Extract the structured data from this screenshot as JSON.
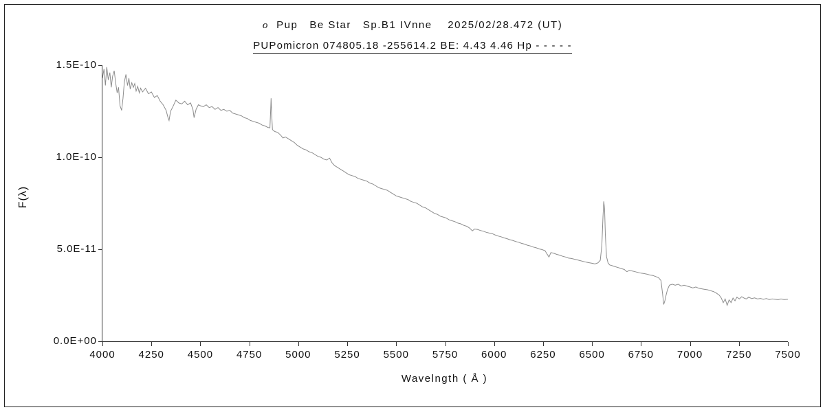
{
  "figure": {
    "title_italic": "o",
    "title_rest": "  Pup   Be Star   Sp.B1 IVnne    2025/02/28.472 (UT)",
    "subtitle": "PUPomicron 074805.18 -255614.2 BE: 4.43 4.46 Hp - - - - -"
  },
  "chart_data": {
    "type": "line",
    "title": "o Pup  Be Star  Sp.B1 IVnne  2025/02/28.472 (UT)",
    "subtitle": "PUPomicron 074805.18 -255614.2 BE: 4.43 4.46 Hp - - - - -",
    "xlabel": "Wavelngth ( Å )",
    "ylabel": "F(λ)",
    "xlim": [
      4000,
      7500
    ],
    "ylim": [
      0,
      15
    ],
    "y_value_scale": "values in units of 1e-11, axis shown 0.0E+00 to 1.5E-10",
    "grid": false,
    "legend": "none",
    "line_color": "#8c8c8c",
    "axis_color": "#333333",
    "x_ticks": [
      4000,
      4250,
      4500,
      4750,
      5000,
      5250,
      5500,
      5750,
      6000,
      6250,
      6500,
      6750,
      7000,
      7250,
      7500
    ],
    "y_ticks": [
      {
        "v": 0,
        "label": "0.0E+00"
      },
      {
        "v": 5,
        "label": "5.0E-11"
      },
      {
        "v": 10,
        "label": "1.0E-10"
      },
      {
        "v": 15,
        "label": "1.5E-10"
      }
    ],
    "series": [
      {
        "name": "spectrum",
        "points": [
          [
            4000,
            14.3
          ],
          [
            4008,
            14.8
          ],
          [
            4015,
            13.9
          ],
          [
            4022,
            14.9
          ],
          [
            4030,
            14.2
          ],
          [
            4038,
            14.6
          ],
          [
            4045,
            13.8
          ],
          [
            4052,
            14.4
          ],
          [
            4060,
            14.7
          ],
          [
            4068,
            14.0
          ],
          [
            4075,
            13.5
          ],
          [
            4082,
            13.8
          ],
          [
            4090,
            12.8
          ],
          [
            4098,
            12.55
          ],
          [
            4105,
            13.2
          ],
          [
            4112,
            14.1
          ],
          [
            4120,
            14.5
          ],
          [
            4128,
            13.9
          ],
          [
            4135,
            14.3
          ],
          [
            4142,
            13.7
          ],
          [
            4150,
            14.05
          ],
          [
            4158,
            13.8
          ],
          [
            4165,
            14.0
          ],
          [
            4172,
            13.6
          ],
          [
            4180,
            13.85
          ],
          [
            4188,
            13.5
          ],
          [
            4195,
            13.75
          ],
          [
            4205,
            13.55
          ],
          [
            4220,
            13.75
          ],
          [
            4235,
            13.45
          ],
          [
            4250,
            13.55
          ],
          [
            4265,
            13.25
          ],
          [
            4280,
            13.35
          ],
          [
            4295,
            13.05
          ],
          [
            4310,
            12.85
          ],
          [
            4325,
            12.55
          ],
          [
            4335,
            12.15
          ],
          [
            4340,
            12.0
          ],
          [
            4348,
            12.5
          ],
          [
            4360,
            12.75
          ],
          [
            4375,
            13.1
          ],
          [
            4390,
            12.95
          ],
          [
            4405,
            12.9
          ],
          [
            4420,
            13.05
          ],
          [
            4435,
            12.85
          ],
          [
            4450,
            12.95
          ],
          [
            4462,
            12.6
          ],
          [
            4468,
            12.15
          ],
          [
            4478,
            12.6
          ],
          [
            4490,
            12.85
          ],
          [
            4500,
            12.8
          ],
          [
            4515,
            12.75
          ],
          [
            4530,
            12.85
          ],
          [
            4545,
            12.7
          ],
          [
            4560,
            12.75
          ],
          [
            4575,
            12.6
          ],
          [
            4590,
            12.7
          ],
          [
            4605,
            12.55
          ],
          [
            4620,
            12.6
          ],
          [
            4635,
            12.5
          ],
          [
            4650,
            12.55
          ],
          [
            4665,
            12.4
          ],
          [
            4680,
            12.35
          ],
          [
            4695,
            12.3
          ],
          [
            4710,
            12.25
          ],
          [
            4725,
            12.15
          ],
          [
            4740,
            12.1
          ],
          [
            4755,
            12.0
          ],
          [
            4770,
            11.95
          ],
          [
            4785,
            11.9
          ],
          [
            4800,
            11.85
          ],
          [
            4815,
            11.75
          ],
          [
            4830,
            11.7
          ],
          [
            4845,
            11.62
          ],
          [
            4855,
            11.6
          ],
          [
            4859,
            12.6
          ],
          [
            4861,
            13.2
          ],
          [
            4864,
            12.4
          ],
          [
            4868,
            11.5
          ],
          [
            4880,
            11.4
          ],
          [
            4895,
            11.35
          ],
          [
            4910,
            11.2
          ],
          [
            4922,
            11.05
          ],
          [
            4935,
            11.1
          ],
          [
            4950,
            11.0
          ],
          [
            4965,
            10.9
          ],
          [
            4980,
            10.8
          ],
          [
            4995,
            10.65
          ],
          [
            5010,
            10.55
          ],
          [
            5025,
            10.45
          ],
          [
            5040,
            10.4
          ],
          [
            5055,
            10.3
          ],
          [
            5070,
            10.25
          ],
          [
            5085,
            10.15
          ],
          [
            5100,
            10.05
          ],
          [
            5115,
            10.0
          ],
          [
            5130,
            9.9
          ],
          [
            5145,
            9.85
          ],
          [
            5160,
            9.95
          ],
          [
            5172,
            9.7
          ],
          [
            5185,
            9.55
          ],
          [
            5200,
            9.45
          ],
          [
            5215,
            9.35
          ],
          [
            5230,
            9.25
          ],
          [
            5245,
            9.15
          ],
          [
            5260,
            9.05
          ],
          [
            5275,
            9.0
          ],
          [
            5290,
            8.95
          ],
          [
            5305,
            8.85
          ],
          [
            5320,
            8.8
          ],
          [
            5335,
            8.75
          ],
          [
            5350,
            8.7
          ],
          [
            5365,
            8.6
          ],
          [
            5380,
            8.55
          ],
          [
            5395,
            8.45
          ],
          [
            5410,
            8.35
          ],
          [
            5425,
            8.3
          ],
          [
            5440,
            8.25
          ],
          [
            5455,
            8.2
          ],
          [
            5470,
            8.1
          ],
          [
            5485,
            8.0
          ],
          [
            5500,
            7.9
          ],
          [
            5515,
            7.85
          ],
          [
            5530,
            7.8
          ],
          [
            5545,
            7.75
          ],
          [
            5560,
            7.7
          ],
          [
            5575,
            7.6
          ],
          [
            5590,
            7.55
          ],
          [
            5605,
            7.5
          ],
          [
            5620,
            7.4
          ],
          [
            5635,
            7.3
          ],
          [
            5650,
            7.25
          ],
          [
            5665,
            7.15
          ],
          [
            5680,
            7.05
          ],
          [
            5695,
            6.95
          ],
          [
            5710,
            6.9
          ],
          [
            5725,
            6.8
          ],
          [
            5740,
            6.75
          ],
          [
            5755,
            6.7
          ],
          [
            5770,
            6.6
          ],
          [
            5785,
            6.55
          ],
          [
            5800,
            6.5
          ],
          [
            5815,
            6.42
          ],
          [
            5830,
            6.38
          ],
          [
            5845,
            6.3
          ],
          [
            5860,
            6.25
          ],
          [
            5875,
            6.15
          ],
          [
            5889,
            6.0
          ],
          [
            5900,
            6.1
          ],
          [
            5915,
            6.08
          ],
          [
            5930,
            6.02
          ],
          [
            5945,
            5.98
          ],
          [
            5960,
            5.92
          ],
          [
            5975,
            5.88
          ],
          [
            5990,
            5.85
          ],
          [
            6005,
            5.78
          ],
          [
            6020,
            5.72
          ],
          [
            6035,
            5.68
          ],
          [
            6050,
            5.62
          ],
          [
            6065,
            5.58
          ],
          [
            6080,
            5.52
          ],
          [
            6095,
            5.48
          ],
          [
            6110,
            5.42
          ],
          [
            6125,
            5.38
          ],
          [
            6140,
            5.32
          ],
          [
            6155,
            5.28
          ],
          [
            6170,
            5.22
          ],
          [
            6185,
            5.18
          ],
          [
            6200,
            5.12
          ],
          [
            6215,
            5.08
          ],
          [
            6230,
            5.02
          ],
          [
            6245,
            4.98
          ],
          [
            6260,
            4.92
          ],
          [
            6270,
            4.75
          ],
          [
            6280,
            4.58
          ],
          [
            6290,
            4.82
          ],
          [
            6305,
            4.78
          ],
          [
            6320,
            4.72
          ],
          [
            6335,
            4.68
          ],
          [
            6350,
            4.62
          ],
          [
            6365,
            4.58
          ],
          [
            6380,
            4.52
          ],
          [
            6395,
            4.5
          ],
          [
            6410,
            4.46
          ],
          [
            6425,
            4.42
          ],
          [
            6440,
            4.38
          ],
          [
            6455,
            4.34
          ],
          [
            6470,
            4.3
          ],
          [
            6485,
            4.27
          ],
          [
            6500,
            4.24
          ],
          [
            6515,
            4.2
          ],
          [
            6530,
            4.26
          ],
          [
            6542,
            4.4
          ],
          [
            6550,
            5.2
          ],
          [
            6556,
            6.8
          ],
          [
            6560,
            7.6
          ],
          [
            6564,
            7.2
          ],
          [
            6568,
            5.8
          ],
          [
            6574,
            4.6
          ],
          [
            6582,
            4.25
          ],
          [
            6590,
            4.15
          ],
          [
            6605,
            4.1
          ],
          [
            6620,
            4.05
          ],
          [
            6635,
            4.0
          ],
          [
            6650,
            3.95
          ],
          [
            6665,
            3.9
          ],
          [
            6678,
            3.78
          ],
          [
            6690,
            3.85
          ],
          [
            6705,
            3.82
          ],
          [
            6720,
            3.78
          ],
          [
            6735,
            3.74
          ],
          [
            6750,
            3.7
          ],
          [
            6765,
            3.68
          ],
          [
            6780,
            3.65
          ],
          [
            6795,
            3.6
          ],
          [
            6810,
            3.58
          ],
          [
            6825,
            3.52
          ],
          [
            6840,
            3.45
          ],
          [
            6852,
            3.3
          ],
          [
            6860,
            2.6
          ],
          [
            6866,
            2.0
          ],
          [
            6872,
            2.2
          ],
          [
            6878,
            2.5
          ],
          [
            6885,
            2.8
          ],
          [
            6895,
            3.05
          ],
          [
            6910,
            3.1
          ],
          [
            6925,
            3.05
          ],
          [
            6940,
            3.1
          ],
          [
            6955,
            3.0
          ],
          [
            6970,
            3.05
          ],
          [
            6985,
            3.0
          ],
          [
            7000,
            2.95
          ],
          [
            7015,
            2.9
          ],
          [
            7030,
            2.95
          ],
          [
            7045,
            2.88
          ],
          [
            7060,
            2.85
          ],
          [
            7075,
            2.82
          ],
          [
            7090,
            2.8
          ],
          [
            7105,
            2.75
          ],
          [
            7120,
            2.7
          ],
          [
            7135,
            2.62
          ],
          [
            7150,
            2.5
          ],
          [
            7160,
            2.35
          ],
          [
            7170,
            2.1
          ],
          [
            7180,
            2.3
          ],
          [
            7190,
            1.95
          ],
          [
            7200,
            2.25
          ],
          [
            7210,
            2.1
          ],
          [
            7220,
            2.35
          ],
          [
            7230,
            2.2
          ],
          [
            7240,
            2.4
          ],
          [
            7252,
            2.3
          ],
          [
            7264,
            2.42
          ],
          [
            7276,
            2.35
          ],
          [
            7288,
            2.3
          ],
          [
            7300,
            2.4
          ],
          [
            7315,
            2.32
          ],
          [
            7330,
            2.36
          ],
          [
            7345,
            2.3
          ],
          [
            7360,
            2.33
          ],
          [
            7375,
            2.28
          ],
          [
            7390,
            2.32
          ],
          [
            7405,
            2.27
          ],
          [
            7420,
            2.3
          ],
          [
            7435,
            2.28
          ],
          [
            7450,
            2.26
          ],
          [
            7465,
            2.3
          ],
          [
            7480,
            2.27
          ],
          [
            7500,
            2.28
          ]
        ]
      }
    ]
  }
}
